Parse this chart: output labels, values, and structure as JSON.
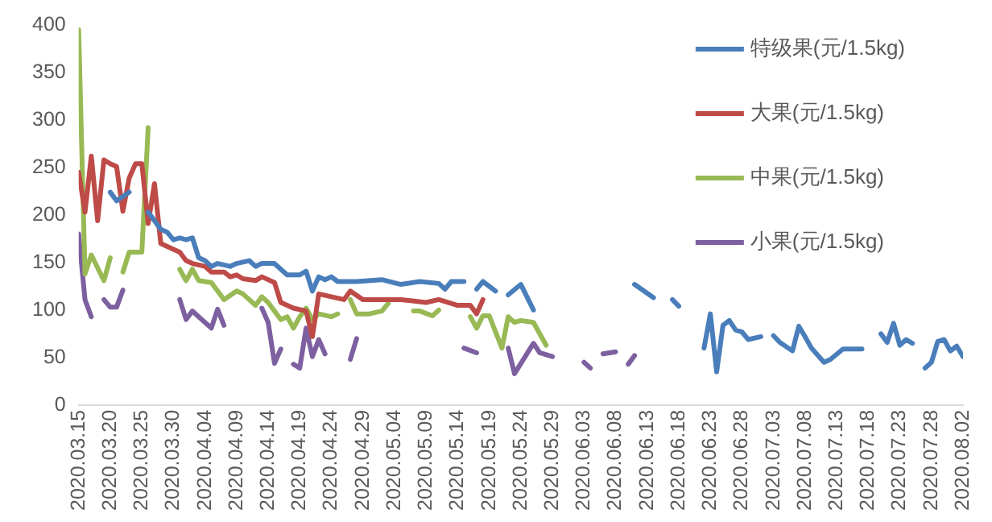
{
  "chart_data": {
    "type": "line",
    "legend": "top right",
    "grid": false,
    "marker": "none",
    "line_style": "solid",
    "xlim": [
      "2020-03-15",
      "2020-08-02"
    ],
    "xticks": [
      {
        "value": "2020-03-15",
        "label": "2020.03.15"
      },
      {
        "value": "2020-03-20",
        "label": "2020.03.20"
      },
      {
        "value": "2020-03-25",
        "label": "2020.03.25"
      },
      {
        "value": "2020-03-30",
        "label": "2020.03.30"
      },
      {
        "value": "2020-04-04",
        "label": "2020.04.04"
      },
      {
        "value": "2020-04-09",
        "label": "2020.04.09"
      },
      {
        "value": "2020-04-14",
        "label": "2020.04.14"
      },
      {
        "value": "2020-04-19",
        "label": "2020.04.19"
      },
      {
        "value": "2020-04-24",
        "label": "2020.04.24"
      },
      {
        "value": "2020-04-29",
        "label": "2020.04.29"
      },
      {
        "value": "2020-05-04",
        "label": "2020.05.04"
      },
      {
        "value": "2020-05-09",
        "label": "2020.05.09"
      },
      {
        "value": "2020-05-14",
        "label": "2020.05.14"
      },
      {
        "value": "2020-05-19",
        "label": "2020.05.19"
      },
      {
        "value": "2020-05-24",
        "label": "2020.05.24"
      },
      {
        "value": "2020-05-29",
        "label": "2020.05.29"
      },
      {
        "value": "2020-06-03",
        "label": "2020.06.03"
      },
      {
        "value": "2020-06-08",
        "label": "2020.06.08"
      },
      {
        "value": "2020-06-13",
        "label": "2020.06.13"
      },
      {
        "value": "2020-06-18",
        "label": "2020.06.18"
      },
      {
        "value": "2020-06-23",
        "label": "2020.06.23"
      },
      {
        "value": "2020-06-28",
        "label": "2020.06.28"
      },
      {
        "value": "2020-07-03",
        "label": "2020.07.03"
      },
      {
        "value": "2020-07-08",
        "label": "2020.07.08"
      },
      {
        "value": "2020-07-13",
        "label": "2020.07.13"
      },
      {
        "value": "2020-07-18",
        "label": "2020.07.18"
      },
      {
        "value": "2020-07-23",
        "label": "2020.07.23"
      },
      {
        "value": "2020-07-28",
        "label": "2020.07.28"
      },
      {
        "value": "2020-08-02",
        "label": "2020.08.02"
      }
    ],
    "ylim": [
      0,
      400
    ],
    "yticks": [
      0,
      50,
      100,
      150,
      200,
      250,
      300,
      350,
      400
    ],
    "series": [
      {
        "name": "特级果(元/1.5kg)",
        "color": "#4a7ebb",
        "x": [
          "2020-03-20",
          "2020-03-21",
          "2020-03-23",
          "2020-03-24",
          "2020-03-26",
          "2020-03-28",
          "2020-03-29",
          "2020-03-30",
          "2020-03-31",
          "2020-04-01",
          "2020-04-02",
          "2020-04-03",
          "2020-04-04",
          "2020-04-05",
          "2020-04-06",
          "2020-04-08",
          "2020-04-09",
          "2020-04-11",
          "2020-04-12",
          "2020-04-13",
          "2020-04-15",
          "2020-04-16",
          "2020-04-17",
          "2020-04-19",
          "2020-04-20",
          "2020-04-21",
          "2020-04-22",
          "2020-04-23",
          "2020-04-24",
          "2020-04-25",
          "2020-04-28",
          "2020-05-02",
          "2020-05-05",
          "2020-05-08",
          "2020-05-11",
          "2020-05-12",
          "2020-05-13",
          "2020-05-15",
          "2020-05-16",
          "2020-05-17",
          "2020-05-18",
          "2020-05-20",
          "2020-05-21",
          "2020-05-22",
          "2020-05-24",
          "2020-05-26",
          "2020-05-27",
          "2020-06-11",
          "2020-06-14",
          "2020-06-15",
          "2020-06-17",
          "2020-06-18",
          "2020-06-19",
          "2020-06-22",
          "2020-06-23",
          "2020-06-24",
          "2020-06-25",
          "2020-06-26",
          "2020-06-27",
          "2020-06-28",
          "2020-06-29",
          "2020-07-01",
          "2020-07-02",
          "2020-07-03",
          "2020-07-04",
          "2020-07-06",
          "2020-07-07",
          "2020-07-08",
          "2020-07-09",
          "2020-07-11",
          "2020-07-12",
          "2020-07-14",
          "2020-07-17",
          "2020-07-18",
          "2020-07-20",
          "2020-07-21",
          "2020-07-22",
          "2020-07-23",
          "2020-07-24",
          "2020-07-25",
          "2020-07-26",
          "2020-07-27",
          "2020-07-28",
          "2020-07-29",
          "2020-07-30",
          "2020-07-31",
          "2020-08-01",
          "2020-08-02"
        ],
        "values": [
          224,
          215,
          224,
          null,
          203,
          185,
          182,
          174,
          176,
          174,
          176,
          155,
          152,
          146,
          149,
          146,
          149,
          152,
          146,
          149,
          149,
          143,
          137,
          137,
          141,
          120,
          135,
          132,
          135,
          130,
          130,
          132,
          127,
          130,
          128,
          122,
          130,
          130,
          null,
          122,
          130,
          120,
          null,
          116,
          127,
          100,
          null,
          127,
          113,
          null,
          111,
          104,
          null,
          60,
          96,
          35,
          84,
          89,
          79,
          77,
          69,
          72,
          null,
          73,
          66,
          57,
          83,
          72,
          60,
          45,
          48,
          59,
          59,
          null,
          75,
          66,
          86,
          63,
          69,
          65,
          null,
          39,
          45,
          67,
          69,
          57,
          62,
          51
        ]
      },
      {
        "name": "大果(元/1.5kg)",
        "color": "#be4b48",
        "x": [
          "2020-03-15",
          "2020-03-16",
          "2020-03-17",
          "2020-03-18",
          "2020-03-19",
          "2020-03-20",
          "2020-03-21",
          "2020-03-22",
          "2020-03-23",
          "2020-03-24",
          "2020-03-25",
          "2020-03-26",
          "2020-03-27",
          "2020-03-28",
          "2020-03-30",
          "2020-03-31",
          "2020-04-01",
          "2020-04-02",
          "2020-04-04",
          "2020-04-05",
          "2020-04-07",
          "2020-04-08",
          "2020-04-09",
          "2020-04-10",
          "2020-04-12",
          "2020-04-13",
          "2020-04-15",
          "2020-04-16",
          "2020-04-18",
          "2020-04-20",
          "2020-04-21",
          "2020-04-22",
          "2020-04-24",
          "2020-04-26",
          "2020-04-27",
          "2020-04-29",
          "2020-05-02",
          "2020-05-05",
          "2020-05-09",
          "2020-05-11",
          "2020-05-14",
          "2020-05-16",
          "2020-05-17",
          "2020-05-18"
        ],
        "values": [
          245,
          203,
          262,
          194,
          258,
          254,
          251,
          204,
          239,
          254,
          254,
          191,
          233,
          170,
          164,
          161,
          152,
          149,
          146,
          140,
          140,
          135,
          137,
          133,
          131,
          135,
          129,
          108,
          102,
          99,
          72,
          117,
          114,
          111,
          120,
          111,
          111,
          111,
          108,
          111,
          105,
          105,
          96,
          111
        ]
      },
      {
        "name": "中果(元/1.5kg)",
        "color": "#98b954",
        "x": [
          "2020-03-15",
          "2020-03-16",
          "2020-03-17",
          "2020-03-19",
          "2020-03-20",
          "2020-03-21",
          "2020-03-22",
          "2020-03-23",
          "2020-03-25",
          "2020-03-26",
          "2020-03-28",
          "2020-03-31",
          "2020-04-01",
          "2020-04-02",
          "2020-04-03",
          "2020-04-05",
          "2020-04-06",
          "2020-04-07",
          "2020-04-09",
          "2020-04-10",
          "2020-04-12",
          "2020-04-13",
          "2020-04-14",
          "2020-04-16",
          "2020-04-17",
          "2020-04-18",
          "2020-04-19",
          "2020-04-20",
          "2020-04-21",
          "2020-04-22",
          "2020-04-24",
          "2020-04-25",
          "2020-04-26",
          "2020-04-27",
          "2020-04-28",
          "2020-04-30",
          "2020-05-02",
          "2020-05-03",
          "2020-05-04",
          "2020-05-07",
          "2020-05-08",
          "2020-05-10",
          "2020-05-11",
          "2020-05-13",
          "2020-05-16",
          "2020-05-17",
          "2020-05-18",
          "2020-05-19",
          "2020-05-21",
          "2020-05-22",
          "2020-05-23",
          "2020-05-24",
          "2020-05-26",
          "2020-05-28"
        ],
        "values": [
          395,
          138,
          158,
          131,
          155,
          null,
          140,
          161,
          161,
          292,
          null,
          143,
          131,
          143,
          131,
          129,
          120,
          111,
          120,
          117,
          105,
          114,
          108,
          90,
          93,
          81,
          93,
          102,
          90,
          96,
          93,
          96,
          null,
          111,
          96,
          96,
          99,
          107,
          null,
          99,
          99,
          94,
          100,
          null,
          93,
          81,
          94,
          94,
          60,
          93,
          87,
          89,
          87,
          63
        ]
      },
      {
        "name": "小果(元/1.5kg)",
        "color": "#7d60a0",
        "x": [
          "2020-03-15",
          "2020-03-16",
          "2020-03-17",
          "2020-03-18",
          "2020-03-19",
          "2020-03-20",
          "2020-03-21",
          "2020-03-22",
          "2020-03-24",
          "2020-03-31",
          "2020-04-01",
          "2020-04-02",
          "2020-04-03",
          "2020-04-05",
          "2020-04-06",
          "2020-04-07",
          "2020-04-09",
          "2020-04-13",
          "2020-04-14",
          "2020-04-15",
          "2020-04-16",
          "2020-04-17",
          "2020-04-18",
          "2020-04-19",
          "2020-04-20",
          "2020-04-21",
          "2020-04-22",
          "2020-04-23",
          "2020-04-24",
          "2020-04-27",
          "2020-04-28",
          "2020-04-29",
          "2020-05-15",
          "2020-05-17",
          "2020-05-18",
          "2020-05-22",
          "2020-05-23",
          "2020-05-26",
          "2020-05-27",
          "2020-05-29",
          "2020-05-30",
          "2020-06-03",
          "2020-06-04",
          "2020-06-05",
          "2020-06-06",
          "2020-06-08",
          "2020-06-09",
          "2020-06-10",
          "2020-06-11"
        ],
        "values": [
          180,
          111,
          93,
          null,
          111,
          103,
          103,
          121,
          null,
          111,
          90,
          99,
          93,
          81,
          101,
          84,
          null,
          102,
          87,
          44,
          59,
          null,
          43,
          39,
          81,
          51,
          69,
          54,
          null,
          48,
          70,
          null,
          60,
          55,
          null,
          60,
          33,
          65,
          55,
          51,
          null,
          45,
          39,
          null,
          54,
          56,
          null,
          43,
          52
        ]
      }
    ]
  }
}
